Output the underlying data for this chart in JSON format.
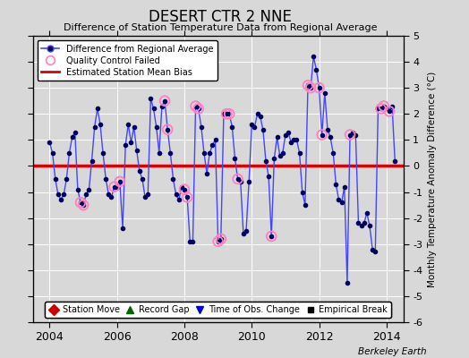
{
  "title": "DESERT CTR 2 NNE",
  "subtitle": "Difference of Station Temperature Data from Regional Average",
  "ylabel_right": "Monthly Temperature Anomaly Difference (°C)",
  "bias": 0.0,
  "xlim": [
    2003.5,
    2014.5
  ],
  "ylim": [
    -6,
    5
  ],
  "yticks": [
    -6,
    -5,
    -4,
    -3,
    -2,
    -1,
    0,
    1,
    2,
    3,
    4,
    5
  ],
  "xticks": [
    2004,
    2006,
    2008,
    2010,
    2012,
    2014
  ],
  "background_color": "#d8d8d8",
  "plot_bg_color": "#d8d8d8",
  "line_color": "#4444ff",
  "marker_color": "#000060",
  "bias_color": "#dd0000",
  "qc_color": "#ff80c0",
  "berkeley_earth_text": "Berkeley Earth",
  "times": [
    2004.0,
    2004.083,
    2004.167,
    2004.25,
    2004.333,
    2004.417,
    2004.5,
    2004.583,
    2004.667,
    2004.75,
    2004.833,
    2004.917,
    2005.0,
    2005.083,
    2005.167,
    2005.25,
    2005.333,
    2005.417,
    2005.5,
    2005.583,
    2005.667,
    2005.75,
    2005.833,
    2005.917,
    2006.0,
    2006.083,
    2006.167,
    2006.25,
    2006.333,
    2006.417,
    2006.5,
    2006.583,
    2006.667,
    2006.75,
    2006.833,
    2006.917,
    2007.0,
    2007.083,
    2007.167,
    2007.25,
    2007.333,
    2007.417,
    2007.5,
    2007.583,
    2007.667,
    2007.75,
    2007.833,
    2007.917,
    2008.0,
    2008.083,
    2008.167,
    2008.25,
    2008.333,
    2008.417,
    2008.5,
    2008.583,
    2008.667,
    2008.75,
    2008.833,
    2008.917,
    2009.0,
    2009.083,
    2009.167,
    2009.25,
    2009.333,
    2009.417,
    2009.5,
    2009.583,
    2009.667,
    2009.75,
    2009.833,
    2009.917,
    2010.0,
    2010.083,
    2010.167,
    2010.25,
    2010.333,
    2010.417,
    2010.5,
    2010.583,
    2010.667,
    2010.75,
    2010.833,
    2010.917,
    2011.0,
    2011.083,
    2011.167,
    2011.25,
    2011.333,
    2011.417,
    2011.5,
    2011.583,
    2011.667,
    2011.75,
    2011.833,
    2011.917,
    2012.0,
    2012.083,
    2012.167,
    2012.25,
    2012.333,
    2012.417,
    2012.5,
    2012.583,
    2012.667,
    2012.75,
    2012.833,
    2012.917,
    2013.0,
    2013.083,
    2013.167,
    2013.25,
    2013.333,
    2013.417,
    2013.5,
    2013.583,
    2013.667,
    2013.75,
    2013.833,
    2013.917,
    2014.0,
    2014.083,
    2014.167,
    2014.25
  ],
  "values": [
    0.9,
    0.5,
    -0.5,
    -1.1,
    -1.3,
    -1.1,
    -0.5,
    0.5,
    1.1,
    1.3,
    -0.9,
    -1.4,
    -1.5,
    -1.1,
    -0.9,
    0.2,
    1.5,
    2.2,
    1.6,
    0.5,
    -0.5,
    -1.1,
    -1.2,
    -0.8,
    -0.8,
    -0.6,
    -2.4,
    0.8,
    1.6,
    0.9,
    1.5,
    0.6,
    -0.2,
    -0.5,
    -1.2,
    -1.1,
    2.6,
    2.2,
    1.5,
    0.5,
    2.3,
    2.5,
    1.4,
    0.5,
    -0.5,
    -1.1,
    -1.3,
    -0.8,
    -0.9,
    -1.2,
    -2.9,
    -2.9,
    2.3,
    2.2,
    1.5,
    0.5,
    -0.3,
    0.5,
    0.8,
    1.0,
    -2.9,
    -2.8,
    2.0,
    2.0,
    2.0,
    1.5,
    0.3,
    -0.5,
    -0.6,
    -2.6,
    -2.5,
    -0.6,
    1.6,
    1.5,
    2.0,
    1.9,
    1.4,
    0.2,
    -0.4,
    -2.7,
    0.3,
    1.1,
    0.4,
    0.5,
    1.2,
    1.3,
    0.9,
    1.0,
    1.0,
    0.5,
    -1.0,
    -1.5,
    3.1,
    3.0,
    4.2,
    3.7,
    3.0,
    1.2,
    2.8,
    1.4,
    1.1,
    0.5,
    -0.7,
    -1.3,
    -1.4,
    -0.8,
    -4.5,
    1.2,
    1.3,
    1.2,
    -2.2,
    -2.3,
    -2.2,
    -1.8,
    -2.3,
    -3.2,
    -3.3,
    2.2,
    2.2,
    2.3,
    2.2,
    2.1,
    2.3,
    0.2
  ],
  "qc_failed_times": [
    2004.917,
    2005.0,
    2005.917,
    2006.083,
    2007.417,
    2007.5,
    2008.0,
    2008.083,
    2008.333,
    2008.417,
    2009.0,
    2009.083,
    2009.25,
    2009.333,
    2009.583,
    2010.583,
    2011.667,
    2011.75,
    2012.0,
    2012.083,
    2012.917,
    2013.833,
    2013.917,
    2014.083
  ]
}
